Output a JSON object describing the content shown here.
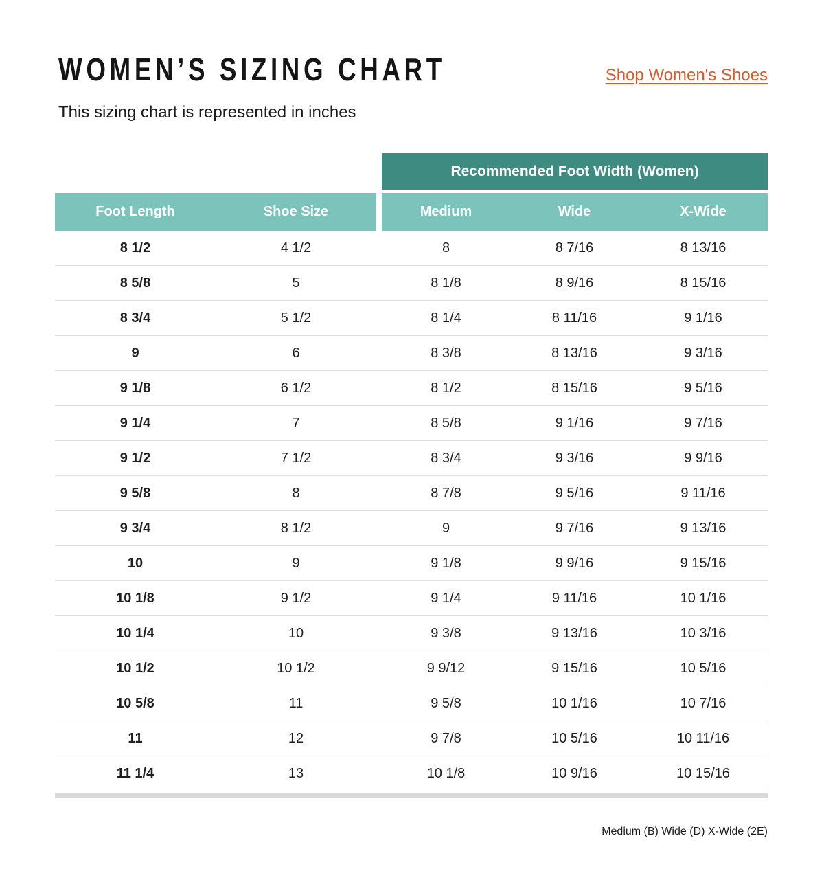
{
  "page": {
    "title": "WOMEN’S SIZING CHART",
    "subtitle": "This sizing chart is represented in inches",
    "shop_link": "Shop Women's Shoes",
    "footnote": "Medium (B) Wide (D) X-Wide (2E)"
  },
  "colors": {
    "teal_dark": "#3E8B81",
    "teal_light": "#7CC3BB",
    "link_orange": "#D95B2D",
    "row_line": "#DCDCDC",
    "bottom_bar": "#D9D9D9",
    "text": "#1F1F1F"
  },
  "table": {
    "group_header": "Recommended Foot Width (Women)",
    "columns": [
      "Foot Length",
      "Shoe Size",
      "Medium",
      "Wide",
      "X-Wide"
    ],
    "rows": [
      [
        "8 1/2",
        "4 1/2",
        "8",
        "8 7/16",
        "8 13/16"
      ],
      [
        "8 5/8",
        "5",
        "8 1/8",
        "8 9/16",
        "8 15/16"
      ],
      [
        "8 3/4",
        "5 1/2",
        "8 1/4",
        "8 11/16",
        "9 1/16"
      ],
      [
        "9",
        "6",
        "8 3/8",
        "8 13/16",
        "9 3/16"
      ],
      [
        "9 1/8",
        "6 1/2",
        "8 1/2",
        "8 15/16",
        "9 5/16"
      ],
      [
        "9 1/4",
        "7",
        "8 5/8",
        "9 1/16",
        "9 7/16"
      ],
      [
        "9 1/2",
        "7 1/2",
        "8 3/4",
        "9 3/16",
        "9 9/16"
      ],
      [
        "9 5/8",
        "8",
        "8 7/8",
        "9 5/16",
        "9 11/16"
      ],
      [
        "9 3/4",
        "8 1/2",
        "9",
        "9 7/16",
        "9 13/16"
      ],
      [
        "10",
        "9",
        "9 1/8",
        "9 9/16",
        "9 15/16"
      ],
      [
        "10 1/8",
        "9 1/2",
        "9 1/4",
        "9 11/16",
        "10 1/16"
      ],
      [
        "10 1/4",
        "10",
        "9 3/8",
        "9 13/16",
        "10 3/16"
      ],
      [
        "10 1/2",
        "10 1/2",
        "9 9/12",
        "9 15/16",
        "10 5/16"
      ],
      [
        "10 5/8",
        "11",
        "9 5/8",
        "10 1/16",
        "10 7/16"
      ],
      [
        "11",
        "12",
        "9 7/8",
        "10 5/16",
        "10 11/16"
      ],
      [
        "11 1/4",
        "13",
        "10 1/8",
        "10 9/16",
        "10 15/16"
      ]
    ]
  }
}
